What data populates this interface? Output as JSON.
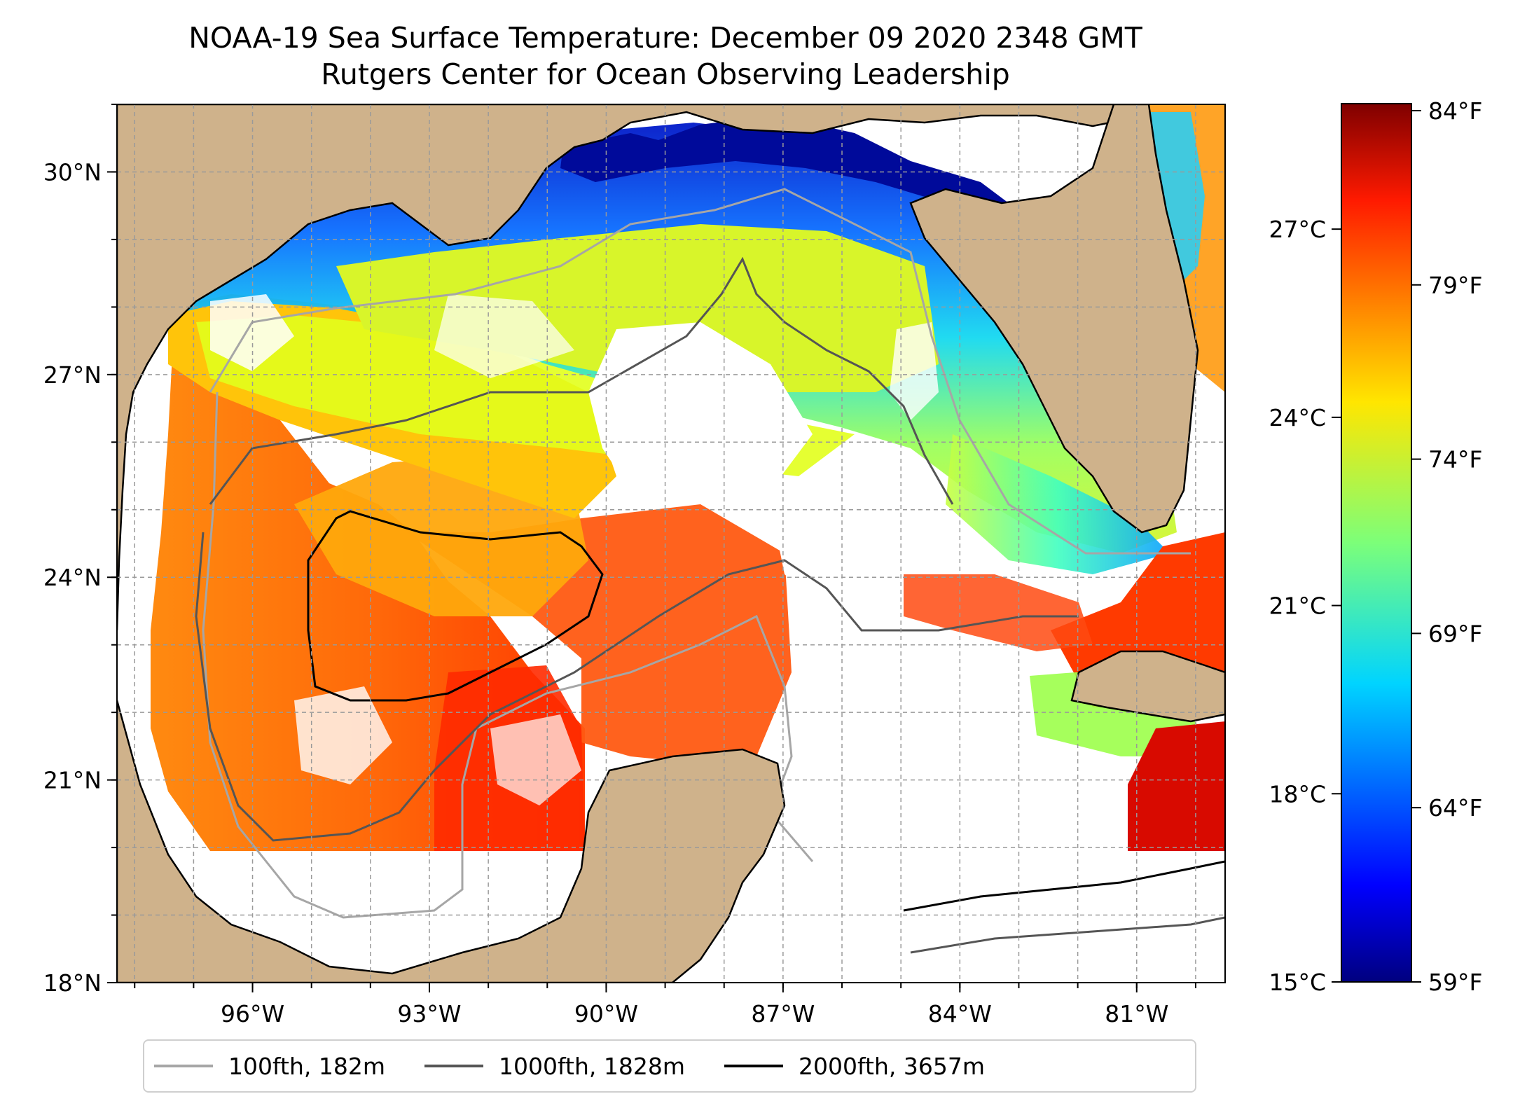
{
  "title": "NOAA-19 Sea Surface Temperature: December 09 2020 2348 GMT",
  "subtitle": "Rutgers Center for Ocean Observing Leadership",
  "map": {
    "extent": {
      "lon_min": -98.3,
      "lon_max": -79.5,
      "lat_min": 18.0,
      "lat_max": 31.0
    },
    "lat_ticks": [
      {
        "value": 30,
        "label": "30°N"
      },
      {
        "value": 27,
        "label": "27°N"
      },
      {
        "value": 24,
        "label": "24°N"
      },
      {
        "value": 21,
        "label": "21°N"
      },
      {
        "value": 18,
        "label": "18°N"
      }
    ],
    "lon_ticks": [
      {
        "value": -96,
        "label": "96°W"
      },
      {
        "value": -93,
        "label": "93°W"
      },
      {
        "value": -90,
        "label": "90°W"
      },
      {
        "value": -87,
        "label": "87°W"
      },
      {
        "value": -84,
        "label": "84°W"
      },
      {
        "value": -81,
        "label": "81°W"
      }
    ],
    "grid": true,
    "land_color": "#cfb28b",
    "no_data_color": "#ffffff",
    "no_data_below_lat": 20.0
  },
  "colorbar": {
    "colormap": "jet",
    "range_c": [
      15,
      29
    ],
    "celsius_ticks": [
      {
        "value": 27,
        "label": "27°C"
      },
      {
        "value": 24,
        "label": "24°C"
      },
      {
        "value": 21,
        "label": "21°C"
      },
      {
        "value": 18,
        "label": "18°C"
      },
      {
        "value": 15,
        "label": "15°C"
      }
    ],
    "fahrenheit_ticks": [
      {
        "value": 84,
        "label": "84°F"
      },
      {
        "value": 79,
        "label": "79°F"
      },
      {
        "value": 74,
        "label": "74°F"
      },
      {
        "value": 69,
        "label": "69°F"
      },
      {
        "value": 64,
        "label": "64°F"
      },
      {
        "value": 59,
        "label": "59°F"
      }
    ]
  },
  "legend": [
    {
      "label": "100fth, 182m",
      "color": "#a6a6a6"
    },
    {
      "label": "1000fth, 1828m",
      "color": "#555555"
    },
    {
      "label": "2000fth, 3657m",
      "color": "#000000"
    }
  ]
}
